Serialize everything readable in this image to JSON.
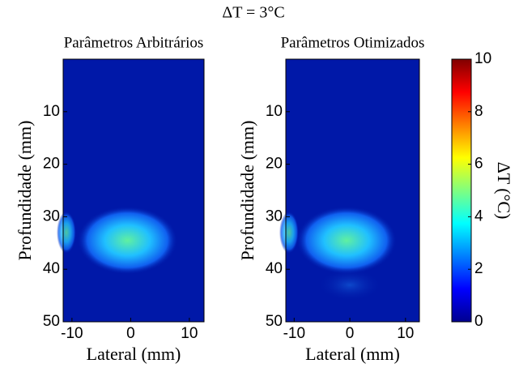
{
  "title": "ΔT = 3°C",
  "chart_data": [
    {
      "type": "heatmap",
      "title": "Parâmetros Arbitrários",
      "xlabel": "Lateral (mm)",
      "ylabel": "Profundidade (mm)",
      "xlim": [
        -11.5,
        12.5
      ],
      "xticks": [
        -10,
        0,
        10
      ],
      "ylim": [
        0,
        50
      ],
      "yticks": [
        10,
        20,
        30,
        40,
        50
      ],
      "y_inverted": true
    },
    {
      "type": "heatmap",
      "title": "Parâmetros Otimizados",
      "xlabel": "Lateral (mm)",
      "ylabel": "Profundidade (mm)",
      "xlim": [
        -11.5,
        12.5
      ],
      "xticks": [
        -10,
        0,
        10
      ],
      "ylim": [
        0,
        50
      ],
      "yticks": [
        10,
        20,
        30,
        40,
        50
      ],
      "y_inverted": true
    }
  ],
  "colorbar": {
    "label": "ΔT (°C)",
    "lim": [
      0,
      10
    ],
    "ticks": [
      0,
      2,
      4,
      6,
      8,
      10
    ]
  }
}
